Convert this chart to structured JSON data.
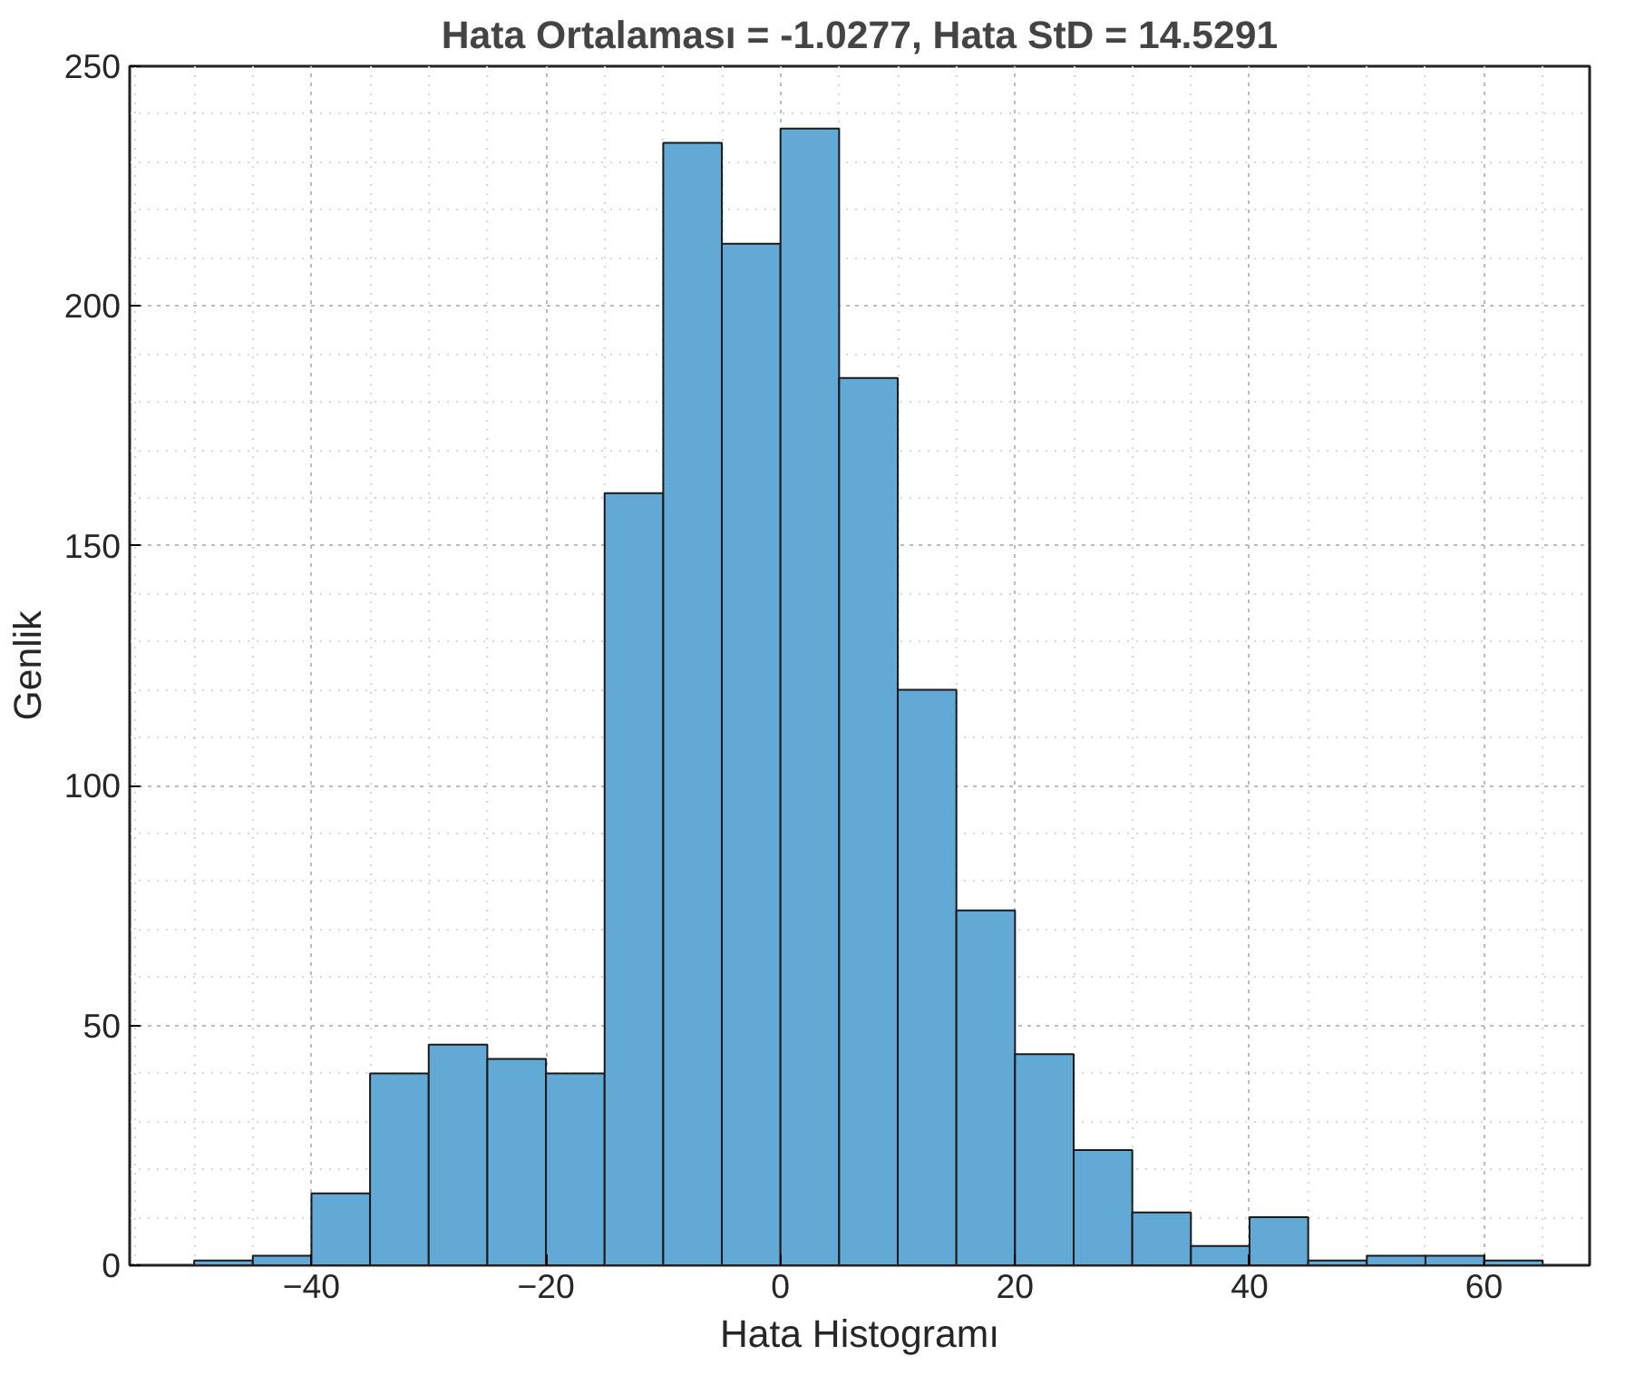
{
  "chart_data": {
    "type": "histogram",
    "title": "Hata Ortalaması = -1.0277, Hata StD = 14.5291",
    "xlabel": "Hata Histogramı",
    "ylabel": "Genlik",
    "bins": [
      -50,
      -45,
      -40,
      -35,
      -30,
      -25,
      -20,
      -15,
      -10,
      -5,
      0,
      5,
      10,
      15,
      20,
      25,
      30,
      35,
      40,
      45,
      50,
      55,
      60,
      65
    ],
    "values": [
      1,
      2,
      15,
      40,
      46,
      43,
      40,
      161,
      234,
      213,
      237,
      185,
      120,
      74,
      44,
      24,
      11,
      4,
      10,
      1,
      2,
      2,
      1
    ],
    "color": "#63a9d6",
    "xlim": [
      -55.5,
      69
    ],
    "ylim": [
      0,
      250
    ],
    "xticks": [
      -40,
      -20,
      0,
      20,
      40,
      60
    ],
    "yticks": [
      0,
      50,
      100,
      150,
      200,
      250
    ],
    "grid": true
  }
}
